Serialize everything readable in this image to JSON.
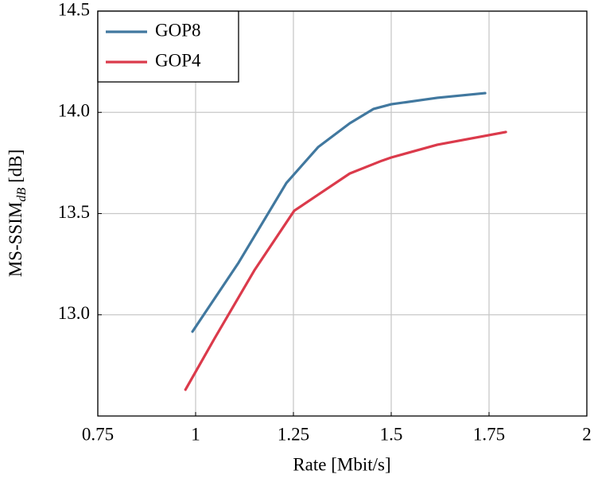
{
  "chart_data": {
    "type": "line",
    "xlabel": "Rate [Mbit/s]",
    "ylabel": [
      "MS-SSIM",
      "dB",
      "[dB]"
    ],
    "xlim": [
      0.75,
      2
    ],
    "xticks": [
      0.75,
      1,
      1.25,
      1.5,
      1.75,
      2
    ],
    "ylim": [
      12.5,
      14.5
    ],
    "yticks": [
      {
        "value": 13,
        "label": "13.0"
      },
      13.5,
      {
        "value": 14,
        "label": "14.0"
      },
      14.5
    ],
    "grid": true,
    "legend": "upper-left",
    "series": [
      {
        "name": "GOP8",
        "color": "#41789f",
        "x": [
          0.992,
          1.11,
          1.232,
          1.313,
          1.394,
          1.455,
          1.5,
          1.618,
          1.74
        ],
        "values": [
          12.917,
          13.258,
          13.651,
          13.828,
          13.946,
          14.017,
          14.04,
          14.072,
          14.095
        ]
      },
      {
        "name": "GOP4",
        "color": "#db3a4b",
        "x": [
          0.974,
          1.049,
          1.15,
          1.252,
          1.313,
          1.394,
          1.476,
          1.5,
          1.618,
          1.793
        ],
        "values": [
          12.63,
          12.885,
          13.219,
          13.514,
          13.593,
          13.698,
          13.761,
          13.777,
          13.84,
          13.903
        ]
      }
    ]
  }
}
